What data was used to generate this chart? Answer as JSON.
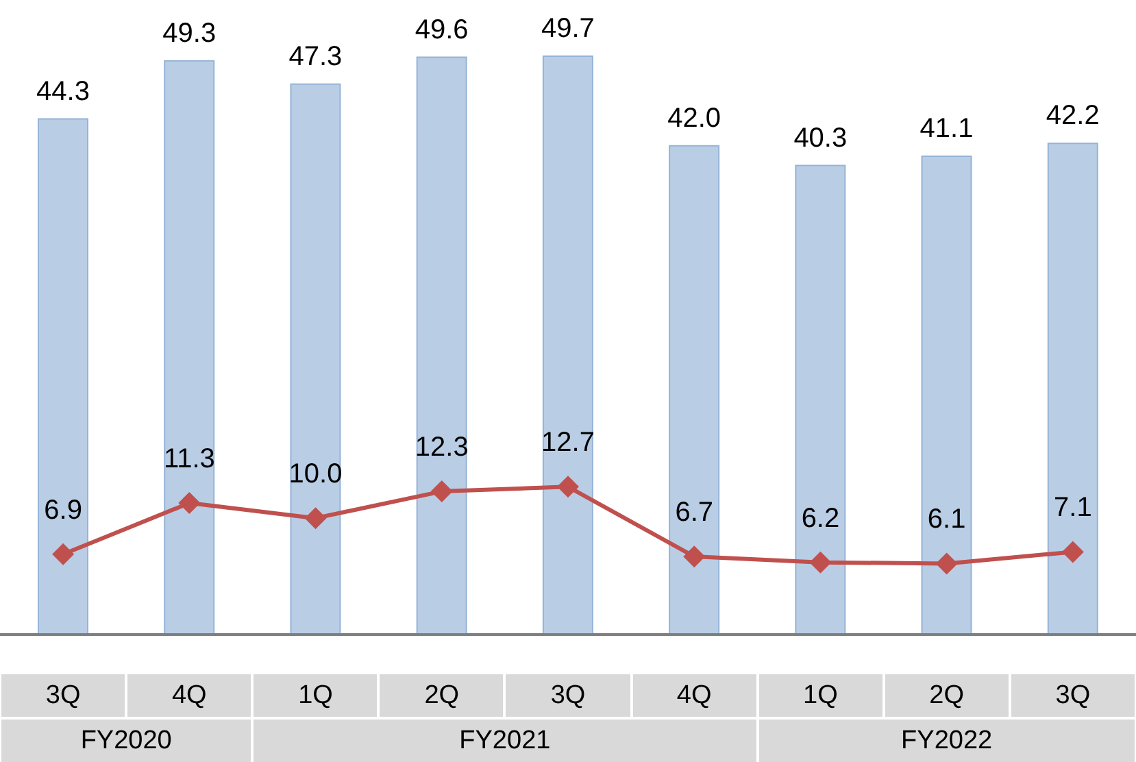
{
  "chart_data": {
    "type": "bar",
    "categories": [
      "3Q",
      "4Q",
      "1Q",
      "2Q",
      "3Q",
      "4Q",
      "1Q",
      "2Q",
      "3Q"
    ],
    "series": [
      {
        "color": "#b9cde5",
        "values": [
          44.3,
          49.3,
          47.3,
          49.6,
          49.7,
          42.0,
          40.3,
          41.1,
          42.2
        ],
        "value_labels": [
          "44.3",
          "49.3",
          "47.3",
          "49.6",
          "49.7",
          "42.0",
          "40.3",
          "41.1",
          "42.2"
        ]
      },
      {
        "type": "line",
        "color": "#c0504d",
        "values": [
          6.9,
          11.3,
          10.0,
          12.3,
          12.7,
          6.7,
          6.2,
          6.1,
          7.1
        ],
        "value_labels": [
          "6.9",
          "11.3",
          "10.0",
          "12.3",
          "12.7",
          "6.7",
          "6.2",
          "6.1",
          "7.1"
        ]
      }
    ],
    "annotations": [
      "FY2020",
      "FY2021",
      "FY2022"
    ],
    "marker": "diamond",
    "line_style": "solid"
  }
}
